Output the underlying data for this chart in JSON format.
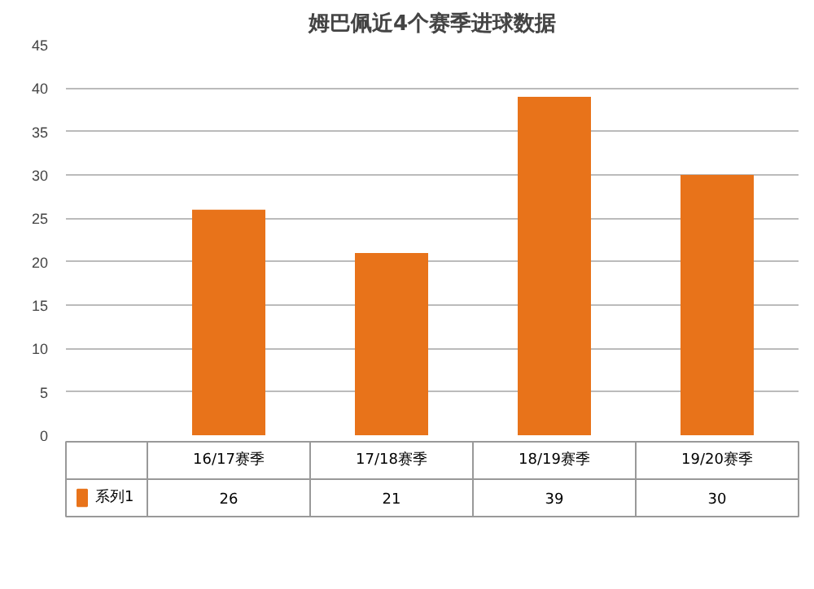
{
  "chart_data": {
    "type": "bar",
    "title": "姆巴佩近4个赛季进球数据",
    "categories": [
      "16/17赛季",
      "17/18赛季",
      "18/19赛季",
      "19/20赛季"
    ],
    "series": [
      {
        "name": "系列1",
        "color": "#e8731a",
        "values": [
          26,
          21,
          39,
          30
        ]
      }
    ],
    "ylim": [
      0,
      45
    ],
    "yticks": [
      0,
      5,
      10,
      15,
      20,
      25,
      30,
      35,
      40,
      45
    ],
    "grid": "y",
    "data_labels": true
  }
}
